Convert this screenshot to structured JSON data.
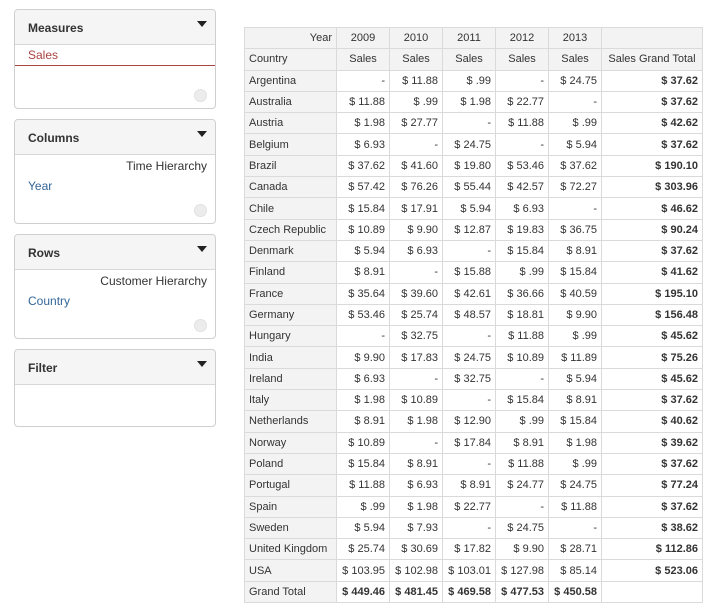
{
  "measures": {
    "title": "Measures",
    "items": [
      "Sales"
    ]
  },
  "columns": {
    "title": "Columns",
    "hierarchy": "Time Hierarchy",
    "level": "Year"
  },
  "rows": {
    "title": "Rows",
    "hierarchy": "Customer Hierarchy",
    "level": "Country"
  },
  "filter": {
    "title": "Filter"
  },
  "table": {
    "year_label": "Year",
    "country_label": "Country",
    "years": [
      "2009",
      "2010",
      "2011",
      "2012",
      "2013"
    ],
    "measure_label": "Sales",
    "total_label": "Sales Grand Total",
    "rows": [
      {
        "country": "Argentina",
        "values": [
          "-",
          "$ 11.88",
          "$ .99",
          "-",
          "$ 24.75"
        ],
        "total": "$ 37.62"
      },
      {
        "country": "Australia",
        "values": [
          "$ 11.88",
          "$ .99",
          "$ 1.98",
          "$ 22.77",
          "-"
        ],
        "total": "$ 37.62"
      },
      {
        "country": "Austria",
        "values": [
          "$ 1.98",
          "$ 27.77",
          "-",
          "$ 11.88",
          "$ .99"
        ],
        "total": "$ 42.62"
      },
      {
        "country": "Belgium",
        "values": [
          "$ 6.93",
          "-",
          "$ 24.75",
          "-",
          "$ 5.94"
        ],
        "total": "$ 37.62"
      },
      {
        "country": "Brazil",
        "values": [
          "$ 37.62",
          "$ 41.60",
          "$ 19.80",
          "$ 53.46",
          "$ 37.62"
        ],
        "total": "$ 190.10"
      },
      {
        "country": "Canada",
        "values": [
          "$ 57.42",
          "$ 76.26",
          "$ 55.44",
          "$ 42.57",
          "$ 72.27"
        ],
        "total": "$ 303.96"
      },
      {
        "country": "Chile",
        "values": [
          "$ 15.84",
          "$ 17.91",
          "$ 5.94",
          "$ 6.93",
          "-"
        ],
        "total": "$ 46.62"
      },
      {
        "country": "Czech Republic",
        "values": [
          "$ 10.89",
          "$ 9.90",
          "$ 12.87",
          "$ 19.83",
          "$ 36.75"
        ],
        "total": "$ 90.24"
      },
      {
        "country": "Denmark",
        "values": [
          "$ 5.94",
          "$ 6.93",
          "-",
          "$ 15.84",
          "$ 8.91"
        ],
        "total": "$ 37.62"
      },
      {
        "country": "Finland",
        "values": [
          "$ 8.91",
          "-",
          "$ 15.88",
          "$ .99",
          "$ 15.84"
        ],
        "total": "$ 41.62"
      },
      {
        "country": "France",
        "values": [
          "$ 35.64",
          "$ 39.60",
          "$ 42.61",
          "$ 36.66",
          "$ 40.59"
        ],
        "total": "$ 195.10"
      },
      {
        "country": "Germany",
        "values": [
          "$ 53.46",
          "$ 25.74",
          "$ 48.57",
          "$ 18.81",
          "$ 9.90"
        ],
        "total": "$ 156.48"
      },
      {
        "country": "Hungary",
        "values": [
          "-",
          "$ 32.75",
          "-",
          "$ 11.88",
          "$ .99"
        ],
        "total": "$ 45.62"
      },
      {
        "country": "India",
        "values": [
          "$ 9.90",
          "$ 17.83",
          "$ 24.75",
          "$ 10.89",
          "$ 11.89"
        ],
        "total": "$ 75.26"
      },
      {
        "country": "Ireland",
        "values": [
          "$ 6.93",
          "-",
          "$ 32.75",
          "-",
          "$ 5.94"
        ],
        "total": "$ 45.62"
      },
      {
        "country": "Italy",
        "values": [
          "$ 1.98",
          "$ 10.89",
          "-",
          "$ 15.84",
          "$ 8.91"
        ],
        "total": "$ 37.62"
      },
      {
        "country": "Netherlands",
        "values": [
          "$ 8.91",
          "$ 1.98",
          "$ 12.90",
          "$ .99",
          "$ 15.84"
        ],
        "total": "$ 40.62"
      },
      {
        "country": "Norway",
        "values": [
          "$ 10.89",
          "-",
          "$ 17.84",
          "$ 8.91",
          "$ 1.98"
        ],
        "total": "$ 39.62"
      },
      {
        "country": "Poland",
        "values": [
          "$ 15.84",
          "$ 8.91",
          "-",
          "$ 11.88",
          "$ .99"
        ],
        "total": "$ 37.62"
      },
      {
        "country": "Portugal",
        "values": [
          "$ 11.88",
          "$ 6.93",
          "$ 8.91",
          "$ 24.77",
          "$ 24.75"
        ],
        "total": "$ 77.24"
      },
      {
        "country": "Spain",
        "values": [
          "$ .99",
          "$ 1.98",
          "$ 22.77",
          "-",
          "$ 11.88"
        ],
        "total": "$ 37.62"
      },
      {
        "country": "Sweden",
        "values": [
          "$ 5.94",
          "$ 7.93",
          "-",
          "$ 24.75",
          "-"
        ],
        "total": "$ 38.62"
      },
      {
        "country": "United Kingdom",
        "values": [
          "$ 25.74",
          "$ 30.69",
          "$ 17.82",
          "$ 9.90",
          "$ 28.71"
        ],
        "total": "$ 112.86"
      },
      {
        "country": "USA",
        "values": [
          "$ 103.95",
          "$ 102.98",
          "$ 103.01",
          "$ 127.98",
          "$ 85.14"
        ],
        "total": "$ 523.06"
      }
    ],
    "grand_total": {
      "label": "Grand Total",
      "values": [
        "$ 449.46",
        "$ 481.45",
        "$ 469.58",
        "$ 477.53",
        "$ 450.58"
      ],
      "total": ""
    }
  }
}
